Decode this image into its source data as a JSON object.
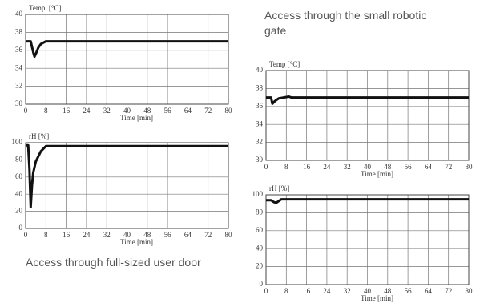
{
  "chart_data": [
    {
      "type": "line",
      "y_label": "Temp. [°C]",
      "x_label": "Time [min]",
      "x": [
        0,
        2,
        3,
        3.5,
        4,
        5,
        6,
        8,
        80
      ],
      "values": [
        37,
        37,
        35.8,
        35.3,
        35.6,
        36.3,
        36.7,
        37,
        37
      ],
      "color": "#111111",
      "xlim": [
        0,
        80
      ],
      "ylim": [
        30,
        40
      ],
      "xticks": [
        0,
        8,
        16,
        24,
        32,
        40,
        48,
        56,
        64,
        72,
        80
      ],
      "yticks": [
        30,
        32,
        34,
        36,
        38,
        40
      ],
      "grid": true
    },
    {
      "type": "line",
      "y_label": "rH [%]",
      "x_label": "Time [min]",
      "caption": "Access through full-sized user door",
      "x": [
        0,
        1,
        1.5,
        2,
        2.5,
        3,
        4,
        6,
        8,
        80
      ],
      "values": [
        97,
        97,
        70,
        25,
        50,
        65,
        78,
        90,
        96,
        96
      ],
      "color": "#111111",
      "xlim": [
        0,
        80
      ],
      "ylim": [
        0,
        100
      ],
      "xticks": [
        0,
        8,
        16,
        24,
        32,
        40,
        48,
        56,
        64,
        72,
        80
      ],
      "yticks": [
        0,
        20,
        40,
        60,
        80,
        100
      ],
      "grid": true
    },
    {
      "type": "line",
      "y_label": "Temp [°C]",
      "x_label": "Time [min]",
      "caption": "Access through the small robotic gate",
      "x": [
        0,
        2,
        2.5,
        3.5,
        5,
        7,
        9,
        10,
        80
      ],
      "values": [
        37,
        37,
        36.3,
        36.6,
        36.9,
        37,
        37.1,
        37,
        37
      ],
      "color": "#111111",
      "xlim": [
        0,
        80
      ],
      "ylim": [
        30,
        40
      ],
      "xticks": [
        0,
        8,
        16,
        24,
        32,
        40,
        48,
        56,
        64,
        72,
        80
      ],
      "yticks": [
        30,
        32,
        34,
        36,
        38,
        40
      ],
      "grid": true
    },
    {
      "type": "line",
      "y_label": "rH [%]",
      "x_label": "Time [min]",
      "x": [
        0,
        2,
        3,
        4,
        5,
        6,
        80
      ],
      "values": [
        94,
        94,
        92,
        91,
        93,
        95,
        95
      ],
      "color": "#111111",
      "xlim": [
        0,
        80
      ],
      "ylim": [
        0,
        100
      ],
      "xticks": [
        0,
        8,
        16,
        24,
        32,
        40,
        48,
        56,
        64,
        72,
        80
      ],
      "yticks": [
        0,
        20,
        40,
        60,
        80,
        100
      ],
      "grid": true
    }
  ]
}
